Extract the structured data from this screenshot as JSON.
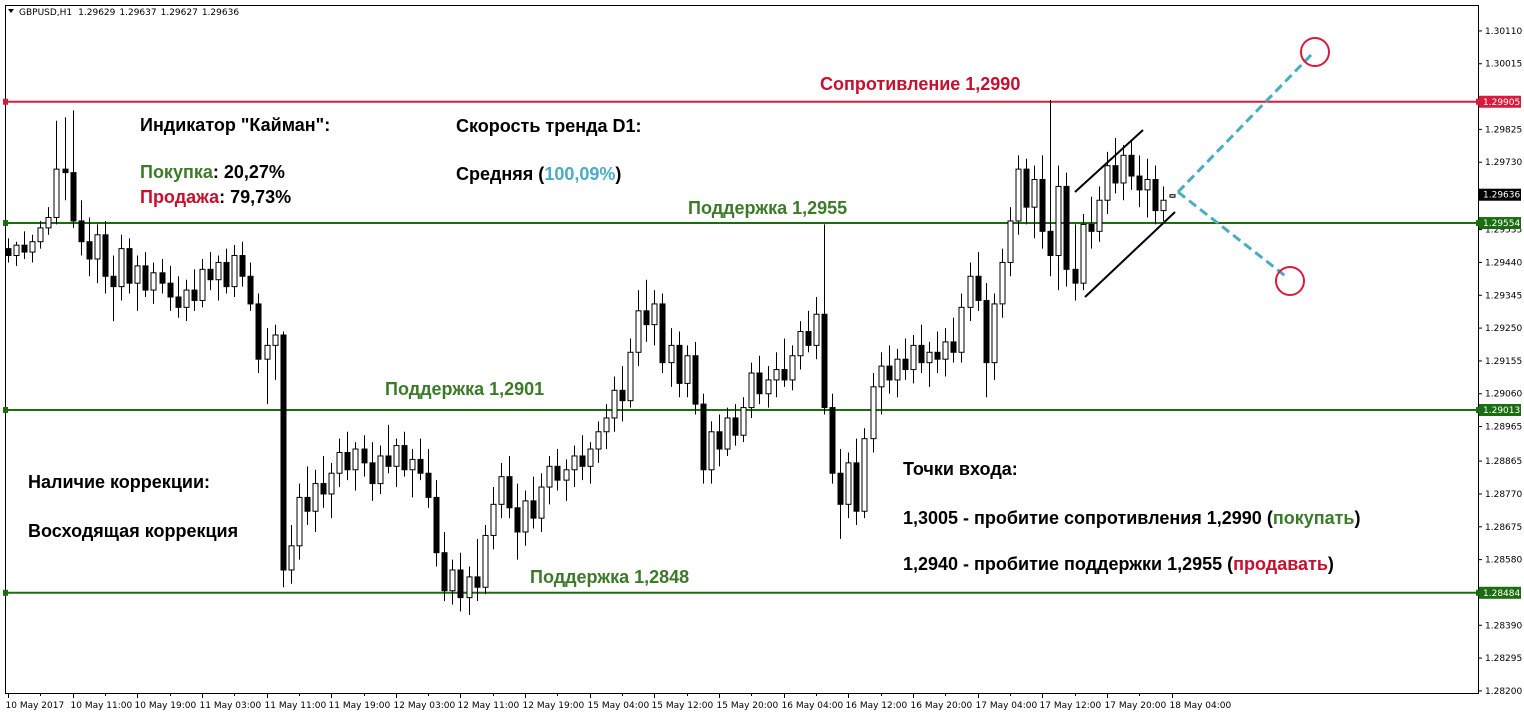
{
  "chart_data": {
    "type": "candlestick",
    "symbol": "GBPUSD,H1",
    "header_values": [
      1.29629,
      1.29637,
      1.29627,
      1.29636
    ],
    "ylim": [
      1.28194,
      1.30185
    ],
    "yticks": [
      {
        "value": 1.3011,
        "label": "1.30110"
      },
      {
        "value": 1.30015,
        "label": "1.30015"
      },
      {
        "value": 1.29825,
        "label": "1.29825"
      },
      {
        "value": 1.2973,
        "label": "1.29730"
      },
      {
        "value": 1.29535,
        "label": "1.29535"
      },
      {
        "value": 1.2944,
        "label": "1.29440"
      },
      {
        "value": 1.29345,
        "label": "1.29345"
      },
      {
        "value": 1.2925,
        "label": "1.29250"
      },
      {
        "value": 1.29155,
        "label": "1.29155"
      },
      {
        "value": 1.2906,
        "label": "1.29060"
      },
      {
        "value": 1.28965,
        "label": "1.28965"
      },
      {
        "value": 1.28865,
        "label": "1.28865"
      },
      {
        "value": 1.2877,
        "label": "1.28770"
      },
      {
        "value": 1.28675,
        "label": "1.28675"
      },
      {
        "value": 1.2858,
        "label": "1.28580"
      },
      {
        "value": 1.2839,
        "label": "1.28390"
      },
      {
        "value": 1.28295,
        "label": "1.28295"
      },
      {
        "value": 1.282,
        "label": "1.28200"
      }
    ],
    "levels": [
      {
        "value": 1.29905,
        "label": "1.29905",
        "color": "#d81b3c"
      },
      {
        "value": 1.29554,
        "label": "1.29554",
        "color": "#1b6e0f"
      },
      {
        "value": 1.29013,
        "label": "1.29013",
        "color": "#1b6e0f"
      },
      {
        "value": 1.28484,
        "label": "1.28484",
        "color": "#1b6e0f"
      }
    ],
    "price_marker": {
      "value": 1.29636,
      "label": "1.29636",
      "color": "#000000"
    },
    "categories": [
      "10 May 2017",
      null,
      null,
      null,
      null,
      null,
      null,
      null,
      "10 May 11:00",
      null,
      null,
      null,
      null,
      null,
      null,
      null,
      "10 May 19:00",
      null,
      null,
      null,
      null,
      null,
      null,
      null,
      "11 May 03:00",
      null,
      null,
      null,
      null,
      null,
      null,
      null,
      "11 May 11:00",
      null,
      null,
      null,
      null,
      null,
      null,
      null,
      "11 May 19:00",
      null,
      null,
      null,
      null,
      null,
      null,
      null,
      "12 May 03:00",
      null,
      null,
      null,
      null,
      null,
      null,
      null,
      "12 May 11:00",
      null,
      null,
      null,
      null,
      null,
      null,
      null,
      "12 May 19:00",
      null,
      null,
      null,
      null,
      null,
      null,
      null,
      "15 May 04:00",
      null,
      null,
      null,
      null,
      null,
      null,
      null,
      "15 May 12:00",
      null,
      null,
      null,
      null,
      null,
      null,
      null,
      "15 May 20:00",
      null,
      null,
      null,
      null,
      null,
      null,
      null,
      "16 May 04:00",
      null,
      null,
      null,
      null,
      null,
      null,
      null,
      "16 May 12:00",
      null,
      null,
      null,
      null,
      null,
      null,
      null,
      "16 May 20:00",
      null,
      null,
      null,
      null,
      null,
      null,
      null,
      "17 May 04:00",
      null,
      null,
      null,
      null,
      null,
      null,
      null,
      "17 May 12:00",
      null,
      null,
      null,
      null,
      null,
      null,
      null,
      "17 May 20:00",
      null,
      null,
      null,
      null,
      null,
      null,
      null,
      "18 May 04:00"
    ],
    "candles": [
      [
        1.2948,
        1.2951,
        1.2944,
        1.2946
      ],
      [
        1.2946,
        1.295,
        1.2943,
        1.2949
      ],
      [
        1.2949,
        1.2953,
        1.2945,
        1.2947
      ],
      [
        1.2947,
        1.2952,
        1.2944,
        1.295
      ],
      [
        1.295,
        1.2956,
        1.2948,
        1.2954
      ],
      [
        1.2954,
        1.296,
        1.2952,
        1.2957
      ],
      [
        1.2957,
        1.2985,
        1.2955,
        1.2971
      ],
      [
        1.2971,
        1.2986,
        1.2962,
        1.297
      ],
      [
        1.297,
        1.2988,
        1.2954,
        1.2956
      ],
      [
        1.2956,
        1.2962,
        1.2946,
        1.295
      ],
      [
        1.295,
        1.2957,
        1.294,
        1.2945
      ],
      [
        1.2945,
        1.2955,
        1.2938,
        1.2952
      ],
      [
        1.2952,
        1.2956,
        1.2935,
        1.294
      ],
      [
        1.294,
        1.2946,
        1.2927,
        1.2937
      ],
      [
        1.2937,
        1.2952,
        1.2933,
        1.2948
      ],
      [
        1.2948,
        1.2951,
        1.2935,
        1.2938
      ],
      [
        1.2938,
        1.2946,
        1.293,
        1.2943
      ],
      [
        1.2943,
        1.2947,
        1.2934,
        1.2936
      ],
      [
        1.2936,
        1.2944,
        1.2932,
        1.2941
      ],
      [
        1.2941,
        1.2945,
        1.2935,
        1.2938
      ],
      [
        1.2938,
        1.2943,
        1.293,
        1.2934
      ],
      [
        1.2934,
        1.294,
        1.2928,
        1.2931
      ],
      [
        1.2931,
        1.2939,
        1.2927,
        1.2936
      ],
      [
        1.2936,
        1.2942,
        1.293,
        1.2933
      ],
      [
        1.2933,
        1.2945,
        1.2931,
        1.2942
      ],
      [
        1.2942,
        1.2947,
        1.2936,
        1.2939
      ],
      [
        1.2939,
        1.2946,
        1.2933,
        1.2944
      ],
      [
        1.2944,
        1.2948,
        1.2935,
        1.2937
      ],
      [
        1.2937,
        1.2949,
        1.2934,
        1.2946
      ],
      [
        1.2946,
        1.295,
        1.2937,
        1.294
      ],
      [
        1.294,
        1.2944,
        1.293,
        1.2932
      ],
      [
        1.2932,
        1.2935,
        1.2912,
        1.2916
      ],
      [
        1.2916,
        1.2925,
        1.2903,
        1.292
      ],
      [
        1.292,
        1.2926,
        1.291,
        1.2923
      ],
      [
        1.2923,
        1.2924,
        1.285,
        1.2855
      ],
      [
        1.2855,
        1.2868,
        1.2851,
        1.2862
      ],
      [
        1.2862,
        1.288,
        1.2858,
        1.2876
      ],
      [
        1.2876,
        1.2885,
        1.2868,
        1.2872
      ],
      [
        1.2872,
        1.2884,
        1.2866,
        1.288
      ],
      [
        1.288,
        1.2888,
        1.2873,
        1.2877
      ],
      [
        1.2877,
        1.2886,
        1.287,
        1.2883
      ],
      [
        1.2883,
        1.2893,
        1.2879,
        1.2889
      ],
      [
        1.2889,
        1.2895,
        1.2881,
        1.2884
      ],
      [
        1.2884,
        1.2892,
        1.2878,
        1.289
      ],
      [
        1.289,
        1.2894,
        1.2882,
        1.2886
      ],
      [
        1.2886,
        1.2892,
        1.2875,
        1.288
      ],
      [
        1.288,
        1.2891,
        1.2877,
        1.2888
      ],
      [
        1.2888,
        1.2897,
        1.2883,
        1.2885
      ],
      [
        1.2885,
        1.2893,
        1.2879,
        1.2891
      ],
      [
        1.2891,
        1.2895,
        1.2882,
        1.2884
      ],
      [
        1.2884,
        1.289,
        1.2876,
        1.2887
      ],
      [
        1.2887,
        1.2893,
        1.2881,
        1.2883
      ],
      [
        1.2883,
        1.289,
        1.2873,
        1.2876
      ],
      [
        1.2876,
        1.2881,
        1.2856,
        1.286
      ],
      [
        1.286,
        1.2866,
        1.2846,
        1.2849
      ],
      [
        1.2849,
        1.2858,
        1.2845,
        1.2855
      ],
      [
        1.2855,
        1.286,
        1.2843,
        1.2847
      ],
      [
        1.2847,
        1.2856,
        1.2842,
        1.2853
      ],
      [
        1.2853,
        1.2864,
        1.2846,
        1.285
      ],
      [
        1.285,
        1.2868,
        1.2848,
        1.2865
      ],
      [
        1.2865,
        1.2879,
        1.2861,
        1.2874
      ],
      [
        1.2874,
        1.2886,
        1.287,
        1.2882
      ],
      [
        1.2882,
        1.2888,
        1.287,
        1.2873
      ],
      [
        1.2873,
        1.288,
        1.2858,
        1.2866
      ],
      [
        1.2866,
        1.2878,
        1.2862,
        1.2875
      ],
      [
        1.2875,
        1.2882,
        1.2867,
        1.287
      ],
      [
        1.287,
        1.2883,
        1.2866,
        1.2879
      ],
      [
        1.2879,
        1.2888,
        1.2874,
        1.2885
      ],
      [
        1.2885,
        1.289,
        1.2878,
        1.2881
      ],
      [
        1.2881,
        1.2887,
        1.2875,
        1.2884
      ],
      [
        1.2884,
        1.2891,
        1.2879,
        1.2888
      ],
      [
        1.2888,
        1.2894,
        1.2881,
        1.2885
      ],
      [
        1.2885,
        1.2892,
        1.288,
        1.289
      ],
      [
        1.289,
        1.2898,
        1.2886,
        1.2895
      ],
      [
        1.2895,
        1.2903,
        1.289,
        1.2899
      ],
      [
        1.2899,
        1.2911,
        1.2895,
        1.2907
      ],
      [
        1.2907,
        1.2914,
        1.2898,
        1.2904
      ],
      [
        1.2904,
        1.2922,
        1.2902,
        1.2918
      ],
      [
        1.2918,
        1.2936,
        1.2914,
        1.293
      ],
      [
        1.293,
        1.2939,
        1.2921,
        1.2926
      ],
      [
        1.2926,
        1.2936,
        1.292,
        1.2932
      ],
      [
        1.2932,
        1.2935,
        1.2912,
        1.2915
      ],
      [
        1.2915,
        1.2925,
        1.2908,
        1.292
      ],
      [
        1.292,
        1.2924,
        1.2905,
        1.2909
      ],
      [
        1.2909,
        1.292,
        1.2905,
        1.2917
      ],
      [
        1.2917,
        1.2921,
        1.29,
        1.2903
      ],
      [
        1.2903,
        1.2906,
        1.288,
        1.2884
      ],
      [
        1.2884,
        1.2898,
        1.288,
        1.2895
      ],
      [
        1.2895,
        1.29,
        1.2885,
        1.289
      ],
      [
        1.289,
        1.2902,
        1.2888,
        1.2899
      ],
      [
        1.2899,
        1.2903,
        1.2891,
        1.2894
      ],
      [
        1.2894,
        1.2905,
        1.2892,
        1.2902
      ],
      [
        1.2902,
        1.2915,
        1.2899,
        1.2912
      ],
      [
        1.2912,
        1.2917,
        1.2903,
        1.2906
      ],
      [
        1.2906,
        1.2914,
        1.2902,
        1.291
      ],
      [
        1.291,
        1.2918,
        1.2905,
        1.2913
      ],
      [
        1.2913,
        1.2922,
        1.2908,
        1.291
      ],
      [
        1.291,
        1.292,
        1.2907,
        1.2917
      ],
      [
        1.2917,
        1.2927,
        1.2913,
        1.2924
      ],
      [
        1.2924,
        1.293,
        1.2918,
        1.292
      ],
      [
        1.292,
        1.2934,
        1.2916,
        1.2929
      ],
      [
        1.2929,
        1.2955,
        1.29,
        1.2902
      ],
      [
        1.2902,
        1.2906,
        1.288,
        1.2883
      ],
      [
        1.2883,
        1.289,
        1.2864,
        1.2874
      ],
      [
        1.2874,
        1.2889,
        1.287,
        1.2886
      ],
      [
        1.2886,
        1.2893,
        1.2868,
        1.2872
      ],
      [
        1.2872,
        1.2896,
        1.287,
        1.2893
      ],
      [
        1.2893,
        1.2912,
        1.2889,
        1.2908
      ],
      [
        1.2908,
        1.2918,
        1.29,
        1.2914
      ],
      [
        1.2914,
        1.292,
        1.2906,
        1.291
      ],
      [
        1.291,
        1.2919,
        1.2905,
        1.2916
      ],
      [
        1.2916,
        1.2922,
        1.291,
        1.2913
      ],
      [
        1.2913,
        1.2923,
        1.2909,
        1.292
      ],
      [
        1.292,
        1.2926,
        1.2912,
        1.2915
      ],
      [
        1.2915,
        1.2921,
        1.2908,
        1.2918
      ],
      [
        1.2918,
        1.2924,
        1.2912,
        1.2916
      ],
      [
        1.2916,
        1.2925,
        1.2911,
        1.2921
      ],
      [
        1.2921,
        1.2928,
        1.2915,
        1.2918
      ],
      [
        1.2918,
        1.2935,
        1.2915,
        1.2931
      ],
      [
        1.2931,
        1.2944,
        1.2927,
        1.294
      ],
      [
        1.294,
        1.2947,
        1.293,
        1.2933
      ],
      [
        1.2933,
        1.2938,
        1.2905,
        1.2915
      ],
      [
        1.2915,
        1.2935,
        1.291,
        1.2932
      ],
      [
        1.2932,
        1.2948,
        1.2928,
        1.2944
      ],
      [
        1.2944,
        1.296,
        1.294,
        1.2956
      ],
      [
        1.2956,
        1.2975,
        1.2952,
        1.2971
      ],
      [
        1.2971,
        1.2974,
        1.2955,
        1.296
      ],
      [
        1.296,
        1.2972,
        1.2951,
        1.2968
      ],
      [
        1.2968,
        1.2975,
        1.2948,
        1.2953
      ],
      [
        1.2953,
        1.2991,
        1.294,
        1.2946
      ],
      [
        1.2946,
        1.2972,
        1.2936,
        1.2966
      ],
      [
        1.2966,
        1.297,
        1.2937,
        1.2942
      ],
      [
        1.2942,
        1.2955,
        1.2933,
        1.2938
      ],
      [
        1.2938,
        1.2958,
        1.2936,
        1.2955
      ],
      [
        1.2955,
        1.2963,
        1.2948,
        1.2953
      ],
      [
        1.2953,
        1.2966,
        1.295,
        1.2962
      ],
      [
        1.2962,
        1.2976,
        1.2958,
        1.2972
      ],
      [
        1.2972,
        1.298,
        1.2964,
        1.2967
      ],
      [
        1.2967,
        1.2978,
        1.2962,
        1.2975
      ],
      [
        1.2975,
        1.2979,
        1.2965,
        1.2969
      ],
      [
        1.2969,
        1.2975,
        1.296,
        1.2965
      ],
      [
        1.2965,
        1.2974,
        1.2957,
        1.2968
      ],
      [
        1.2968,
        1.2972,
        1.2955,
        1.2959
      ],
      [
        1.2959,
        1.2966,
        1.2956,
        1.2962
      ],
      [
        1.29629,
        1.29637,
        1.29627,
        1.29636
      ]
    ],
    "annotations": [
      {
        "parts": [
          {
            "text": "Сопротивление 1,2990",
            "color": "#c8102e"
          }
        ]
      },
      {
        "parts": [
          {
            "text": "Индикатор \"Кайман\":",
            "color": "#000000"
          }
        ]
      },
      {
        "parts": [
          {
            "text": "Покупка",
            "color": "#3c7a2a"
          },
          {
            "text": ": 20,27%",
            "color": "#000000"
          }
        ]
      },
      {
        "parts": [
          {
            "text": "Продажа",
            "color": "#c8102e"
          },
          {
            "text": ": 79,73%",
            "color": "#000000"
          }
        ]
      },
      {
        "parts": [
          {
            "text": "Скорость тренда D1:",
            "color": "#000000"
          }
        ]
      },
      {
        "parts": [
          {
            "text": "Средняя (",
            "color": "#000000"
          },
          {
            "text": "100,09%",
            "color": "#4bacc6"
          },
          {
            "text": ")",
            "color": "#000000"
          }
        ]
      },
      {
        "parts": [
          {
            "text": "Поддержка 1,2955",
            "color": "#3c7a2a"
          }
        ]
      },
      {
        "parts": [
          {
            "text": "Поддержка 1,2901",
            "color": "#3c7a2a"
          }
        ]
      },
      {
        "parts": [
          {
            "text": "Поддержка 1,2848",
            "color": "#3c7a2a"
          }
        ]
      },
      {
        "parts": [
          {
            "text": "Наличие коррекции:",
            "color": "#000000"
          }
        ]
      },
      {
        "parts": [
          {
            "text": "Восходящая коррекция",
            "color": "#000000"
          }
        ]
      },
      {
        "parts": [
          {
            "text": "Точки входа:",
            "color": "#000000"
          }
        ]
      },
      {
        "parts": [
          {
            "text": "1,3005 - пробитие сопротивления 1,2990 (",
            "color": "#000000"
          },
          {
            "text": "покупать",
            "color": "#3c7a2a"
          },
          {
            "text": ")",
            "color": "#000000"
          }
        ]
      },
      {
        "parts": [
          {
            "text": "1,2940 - пробитие поддержки 1,2955 (",
            "color": "#000000"
          },
          {
            "text": "продавать",
            "color": "#c8102e"
          },
          {
            "text": ")",
            "color": "#000000"
          }
        ]
      }
    ]
  }
}
